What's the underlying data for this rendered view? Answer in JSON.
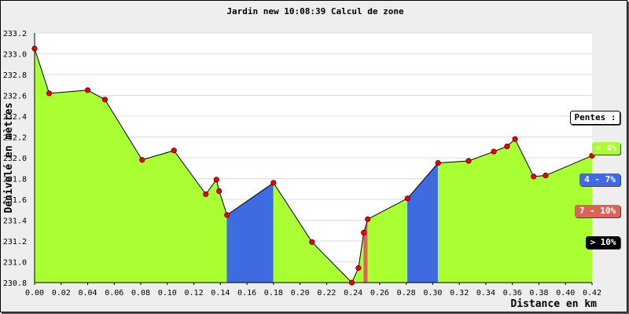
{
  "chart_data": {
    "type": "area",
    "title": "Jardin new 10:08:39 Calcul de zone",
    "xlabel": "Distance en km",
    "ylabel": "Dénivelé en mètres",
    "xlim": [
      0,
      0.42
    ],
    "ylim": [
      230.8,
      233.2
    ],
    "x_ticks": [
      "0.00",
      "0.02",
      "0.04",
      "0.06",
      "0.08",
      "0.10",
      "0.12",
      "0.14",
      "0.16",
      "0.18",
      "0.20",
      "0.22",
      "0.24",
      "0.26",
      "0.28",
      "0.30",
      "0.32",
      "0.34",
      "0.36",
      "0.38",
      "0.40",
      "0.42"
    ],
    "y_ticks": [
      "230.8",
      "231.0",
      "231.2",
      "231.4",
      "231.6",
      "231.8",
      "232.0",
      "232.2",
      "232.4",
      "232.6",
      "232.8",
      "233.0",
      "233.2"
    ],
    "grid": true,
    "points": [
      {
        "x": 0.0,
        "y": 233.05
      },
      {
        "x": 0.011,
        "y": 232.62
      },
      {
        "x": 0.04,
        "y": 232.65
      },
      {
        "x": 0.053,
        "y": 232.56
      },
      {
        "x": 0.081,
        "y": 231.98
      },
      {
        "x": 0.105,
        "y": 232.07
      },
      {
        "x": 0.129,
        "y": 231.65
      },
      {
        "x": 0.137,
        "y": 231.79
      },
      {
        "x": 0.139,
        "y": 231.68
      },
      {
        "x": 0.145,
        "y": 231.45
      },
      {
        "x": 0.18,
        "y": 231.76
      },
      {
        "x": 0.209,
        "y": 231.19
      },
      {
        "x": 0.239,
        "y": 230.8
      },
      {
        "x": 0.244,
        "y": 230.94
      },
      {
        "x": 0.248,
        "y": 231.28
      },
      {
        "x": 0.251,
        "y": 231.41
      },
      {
        "x": 0.281,
        "y": 231.61
      },
      {
        "x": 0.304,
        "y": 231.95
      },
      {
        "x": 0.327,
        "y": 231.97
      },
      {
        "x": 0.346,
        "y": 232.06
      },
      {
        "x": 0.356,
        "y": 232.11
      },
      {
        "x": 0.362,
        "y": 232.18
      },
      {
        "x": 0.376,
        "y": 231.82
      },
      {
        "x": 0.385,
        "y": 231.83
      },
      {
        "x": 0.42,
        "y": 232.02
      }
    ],
    "segment_colors": [
      "green",
      "green",
      "green",
      "green",
      "green",
      "green",
      "green",
      "green",
      "green",
      "blue",
      "green",
      "green",
      "green",
      "green",
      "red",
      "green",
      "blue",
      "green",
      "green",
      "green",
      "green",
      "green",
      "green",
      "green"
    ],
    "legend": {
      "placement": "right",
      "title": "Pentes :",
      "items": [
        {
          "label": "< 4%",
          "key": "green"
        },
        {
          "label": "4 - 7%",
          "key": "blue"
        },
        {
          "label": "7 - 10%",
          "key": "red"
        },
        {
          "label": "> 10%",
          "key": "black"
        }
      ]
    },
    "colors": {
      "green": "#aaff33",
      "blue": "#3e6be0",
      "red": "#d9645a",
      "black": "#000000",
      "line": "#000000",
      "point": "#ee0000",
      "plot_bg": "#ffffff",
      "grid": "#dddddd"
    }
  }
}
